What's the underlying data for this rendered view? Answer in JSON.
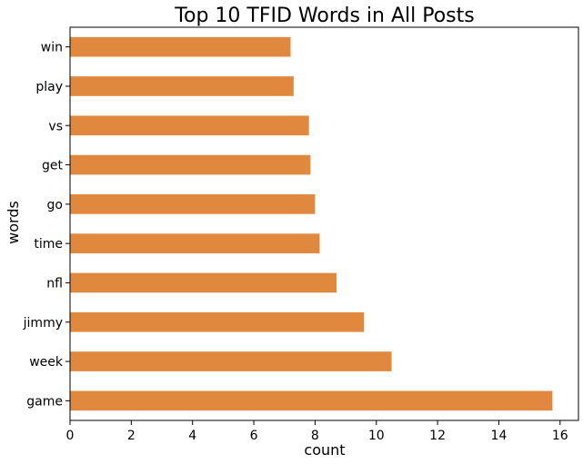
{
  "chart_data": {
    "type": "bar",
    "orientation": "horizontal",
    "title": "Top 10 TFID Words in All Posts",
    "xlabel": "count",
    "ylabel": "words",
    "categories": [
      "win",
      "play",
      "vs",
      "get",
      "go",
      "time",
      "nfl",
      "jimmy",
      "week",
      "game"
    ],
    "values": [
      7.2,
      7.3,
      7.8,
      7.85,
      8.0,
      8.15,
      8.7,
      9.6,
      10.5,
      15.75
    ],
    "xlim": [
      0,
      16.6
    ],
    "xticks": [
      0,
      2,
      4,
      6,
      8,
      10,
      12,
      14,
      16
    ],
    "grid": false,
    "bar_color": "#e1883f"
  }
}
